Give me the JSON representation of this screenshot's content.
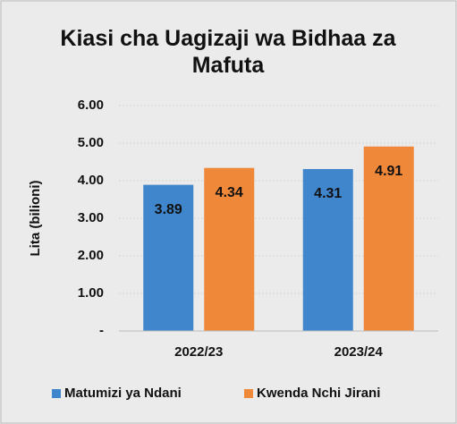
{
  "chart_data": {
    "type": "bar",
    "title": "Kiasi cha Uagizaji wa Bidhaa za Mafuta",
    "y_label": "Lita (bilioni)",
    "categories": [
      "2022/23",
      "2023/24"
    ],
    "series": [
      {
        "name": "Matumizi ya Ndani",
        "color": "#3f86cc",
        "values": [
          3.89,
          4.31
        ]
      },
      {
        "name": "Kwenda Nchi Jirani",
        "color": "#f0883a",
        "values": [
          4.34,
          4.91
        ]
      }
    ],
    "ylim": [
      0,
      6
    ],
    "yticks": [
      {
        "value": 0,
        "label": "-"
      },
      {
        "value": 1,
        "label": "1.00"
      },
      {
        "value": 2,
        "label": "2.00"
      },
      {
        "value": 3,
        "label": "3.00"
      },
      {
        "value": 4,
        "label": "4.00"
      },
      {
        "value": 5,
        "label": "5.00"
      },
      {
        "value": 6,
        "label": "6.00"
      }
    ],
    "grid": true,
    "legend": "bottom"
  }
}
